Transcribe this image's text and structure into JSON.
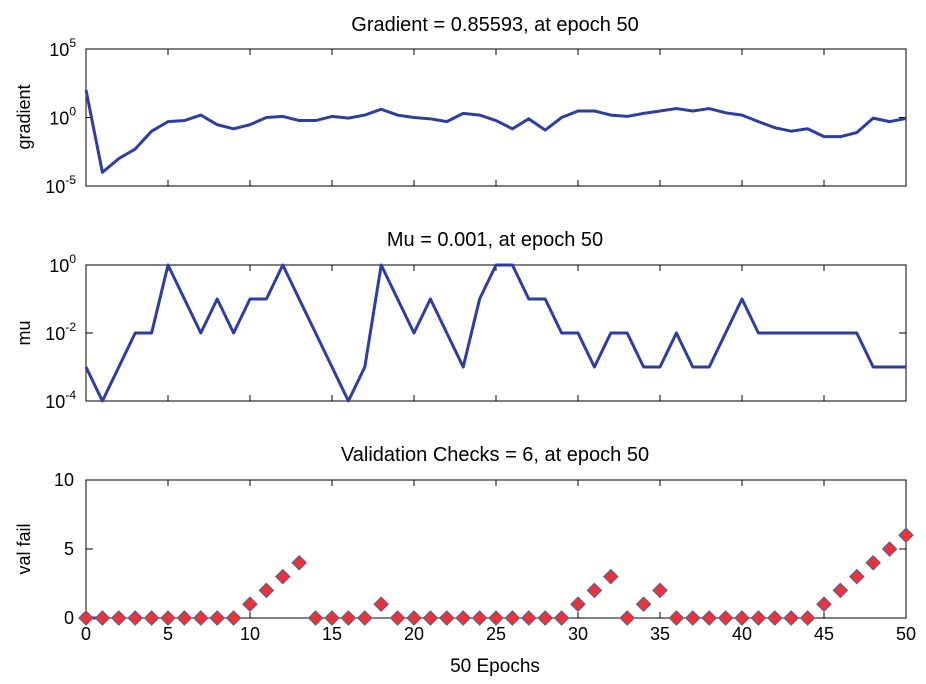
{
  "chart_data": [
    {
      "type": "line",
      "title": "Gradient = 0.85593, at epoch 50",
      "xlabel": "",
      "ylabel": "gradient",
      "y_scale": "log",
      "xlim": [
        0,
        50
      ],
      "ylim": [
        1e-05,
        100000
      ],
      "y_ticks": [
        {
          "value": 1e-05,
          "base": "10",
          "exp": "-5"
        },
        {
          "value": 1,
          "base": "10",
          "exp": "0"
        },
        {
          "value": 100000,
          "base": "10",
          "exp": "5"
        }
      ],
      "line_color": "#2e3ea0",
      "series": [
        {
          "x": [
            0,
            1,
            2,
            3,
            4,
            5,
            6,
            7,
            8,
            9,
            10,
            11,
            12,
            13,
            14,
            15,
            16,
            17,
            18,
            19,
            20,
            21,
            22,
            23,
            24,
            25,
            26,
            27,
            28,
            29,
            30,
            31,
            32,
            33,
            34,
            35,
            36,
            37,
            38,
            39,
            40,
            41,
            42,
            43,
            44,
            45,
            46,
            47,
            48,
            49,
            50
          ],
          "values": [
            100,
            0.0001,
            0.001,
            0.005,
            0.1,
            0.5,
            0.6,
            1.5,
            0.3,
            0.15,
            0.3,
            1,
            1.2,
            0.6,
            0.6,
            1.2,
            0.9,
            1.5,
            4,
            1.5,
            1,
            0.8,
            0.5,
            2,
            1.5,
            0.6,
            0.15,
            0.8,
            0.12,
            1,
            3,
            3,
            1.5,
            1.2,
            2,
            3,
            4.5,
            3,
            4.5,
            2.2,
            1.5,
            0.5,
            0.18,
            0.1,
            0.15,
            0.04,
            0.04,
            0.08,
            0.9,
            0.5,
            0.85593
          ]
        }
      ]
    },
    {
      "type": "line",
      "title": "Mu = 0.001, at epoch 50",
      "xlabel": "",
      "ylabel": "mu",
      "y_scale": "log",
      "xlim": [
        0,
        50
      ],
      "ylim": [
        0.0001,
        1
      ],
      "y_ticks": [
        {
          "value": 0.0001,
          "base": "10",
          "exp": "-4"
        },
        {
          "value": 0.01,
          "base": "10",
          "exp": "-2"
        },
        {
          "value": 1,
          "base": "10",
          "exp": "0"
        }
      ],
      "line_color": "#2e3ea0",
      "series": [
        {
          "x": [
            0,
            1,
            2,
            3,
            4,
            5,
            6,
            7,
            8,
            9,
            10,
            11,
            12,
            13,
            14,
            15,
            16,
            17,
            18,
            19,
            20,
            21,
            22,
            23,
            24,
            25,
            26,
            27,
            28,
            29,
            30,
            31,
            32,
            33,
            34,
            35,
            36,
            37,
            38,
            39,
            40,
            41,
            42,
            43,
            44,
            45,
            46,
            47,
            48,
            49,
            50
          ],
          "values": [
            0.001,
            0.0001,
            0.001,
            0.01,
            0.01,
            1,
            0.1,
            0.01,
            0.1,
            0.01,
            0.1,
            0.1,
            1,
            0.1,
            0.01,
            0.001,
            0.0001,
            0.001,
            1,
            0.1,
            0.01,
            0.1,
            0.01,
            0.001,
            0.1,
            1,
            1,
            0.1,
            0.1,
            0.01,
            0.01,
            0.001,
            0.01,
            0.01,
            0.001,
            0.001,
            0.01,
            0.001,
            0.001,
            0.01,
            0.1,
            0.01,
            0.01,
            0.01,
            0.01,
            0.01,
            0.01,
            0.01,
            0.001,
            0.001,
            0.001
          ]
        }
      ]
    },
    {
      "type": "scatter",
      "title": "Validation Checks = 6, at epoch 50",
      "xlabel": "50 Epochs",
      "ylabel": "val fail",
      "xlim": [
        0,
        50
      ],
      "ylim": [
        0,
        10
      ],
      "x_ticks": [
        "0",
        "5",
        "10",
        "15",
        "20",
        "25",
        "30",
        "35",
        "40",
        "45",
        "50"
      ],
      "y_ticks": [
        "0",
        "5",
        "10"
      ],
      "marker": "diamond",
      "marker_color": "#e8333a",
      "marker_edge": "#6a5a88",
      "line_color": "#2e3ea0",
      "series": [
        {
          "x": [
            0,
            1,
            2,
            3,
            4,
            5,
            6,
            7,
            8,
            9,
            10,
            11,
            12,
            13,
            14,
            15,
            16,
            17,
            18,
            19,
            20,
            21,
            22,
            23,
            24,
            25,
            26,
            27,
            28,
            29,
            30,
            31,
            32,
            33,
            34,
            35,
            36,
            37,
            38,
            39,
            40,
            41,
            42,
            43,
            44,
            45,
            46,
            47,
            48,
            49,
            50
          ],
          "values": [
            0,
            0,
            0,
            0,
            0,
            0,
            0,
            0,
            0,
            0,
            1,
            2,
            3,
            4,
            0,
            0,
            0,
            0,
            1,
            0,
            0,
            0,
            0,
            0,
            0,
            0,
            0,
            0,
            0,
            0,
            1,
            2,
            3,
            0,
            1,
            2,
            0,
            0,
            0,
            0,
            0,
            0,
            0,
            0,
            0,
            1,
            2,
            3,
            4,
            5,
            6
          ]
        }
      ]
    }
  ]
}
